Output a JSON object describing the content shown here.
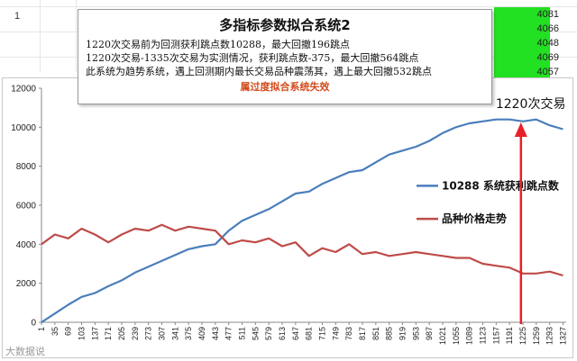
{
  "spreadsheet": {
    "row_number": "1",
    "cells": [
      "4081",
      "4066",
      "4048",
      "4069",
      "4057"
    ]
  },
  "textbox": {
    "title": "多指标参数拟合系统2",
    "line1": "1220次交易前为回测获利跳点数10288，最大回撤196跳点",
    "line2": "1220次交易-1335次交易为实测情况，获利跳点数-375，最大回撤564跳点",
    "line3": "此系统为趋势系统，遇上回测期内最长交易品种震荡其，遇上最大回撤532跳点",
    "warning": "属过度拟合系统失效"
  },
  "watermark": "大数据说",
  "colors": {
    "blue_series": "#4a7ebb",
    "red_series": "#be4b48",
    "arrow": "#e8202a",
    "green": "#22e022"
  },
  "chart_data": {
    "type": "line",
    "title": "",
    "xlabel": "",
    "ylabel": "",
    "ylim": [
      0,
      12000
    ],
    "yticks": [
      0,
      2000,
      4000,
      6000,
      8000,
      10000,
      12000
    ],
    "xticks": [
      1,
      35,
      69,
      103,
      137,
      171,
      205,
      239,
      273,
      307,
      341,
      375,
      409,
      443,
      477,
      511,
      545,
      579,
      613,
      647,
      681,
      715,
      749,
      783,
      817,
      851,
      885,
      919,
      953,
      987,
      1021,
      1055,
      1089,
      1123,
      1157,
      1191,
      1225,
      1259,
      1293,
      1327
    ],
    "xlim": [
      1,
      1335
    ],
    "grid": false,
    "legend_placement": "right",
    "annotation": {
      "text": "1220次交易",
      "x": 1220
    },
    "series": [
      {
        "name": "10288 系统获利跳点数",
        "x": [
          1,
          35,
          69,
          103,
          137,
          171,
          205,
          239,
          273,
          307,
          341,
          375,
          409,
          443,
          477,
          511,
          545,
          579,
          613,
          647,
          681,
          715,
          749,
          783,
          817,
          851,
          885,
          919,
          953,
          987,
          1021,
          1055,
          1089,
          1123,
          1157,
          1191,
          1225,
          1259,
          1293,
          1327
        ],
        "values": [
          0,
          450,
          900,
          1300,
          1500,
          1850,
          2150,
          2550,
          2850,
          3150,
          3450,
          3750,
          3900,
          4000,
          4700,
          5200,
          5500,
          5800,
          6200,
          6600,
          6700,
          7100,
          7400,
          7700,
          7800,
          8200,
          8600,
          8800,
          9000,
          9300,
          9700,
          10000,
          10200,
          10300,
          10400,
          10400,
          10300,
          10400,
          10100,
          9900
        ]
      },
      {
        "name": "品种价格走势",
        "x": [
          1,
          35,
          69,
          103,
          137,
          171,
          205,
          239,
          273,
          307,
          341,
          375,
          409,
          443,
          477,
          511,
          545,
          579,
          613,
          647,
          681,
          715,
          749,
          783,
          817,
          851,
          885,
          919,
          953,
          987,
          1021,
          1055,
          1089,
          1123,
          1157,
          1191,
          1225,
          1259,
          1293,
          1327
        ],
        "values": [
          4000,
          4500,
          4300,
          4800,
          4500,
          4100,
          4500,
          4800,
          4700,
          5000,
          4700,
          4900,
          4800,
          4700,
          4000,
          4200,
          4100,
          4300,
          3900,
          4100,
          3400,
          3800,
          3600,
          4000,
          3500,
          3600,
          3400,
          3500,
          3600,
          3500,
          3400,
          3300,
          3300,
          3000,
          2900,
          2800,
          2500,
          2500,
          2600,
          2400
        ]
      }
    ]
  }
}
